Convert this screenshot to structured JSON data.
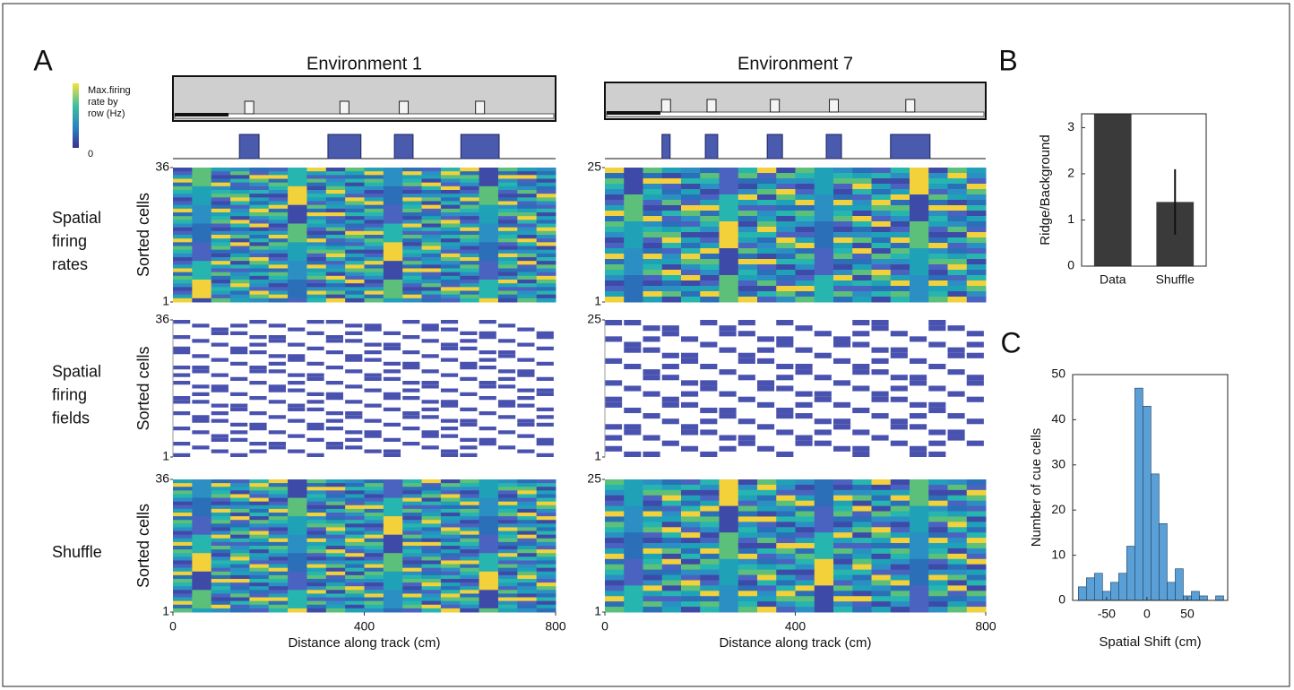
{
  "panel_a": {
    "label": "A",
    "colorbar_label": [
      "Max.firing",
      "rate by",
      "row (Hz)"
    ],
    "colorbar_min": "0",
    "ylabel": "Sorted cells",
    "xlabel": "Distance along track (cm)",
    "xlim": [
      0,
      800
    ],
    "xticks": [
      0,
      400,
      800
    ],
    "rows": [
      {
        "label": [
          "Spatial",
          "firing",
          "rates"
        ]
      },
      {
        "label": [
          "Spatial",
          "firing",
          "fields"
        ]
      },
      {
        "label": [
          "Shuffle"
        ]
      }
    ],
    "environments": [
      {
        "title": "Environment 1",
        "ylim": [
          1,
          36
        ],
        "yticks": [
          36,
          1
        ],
        "cues": [
          [
            139,
            180
          ],
          [
            324,
            393
          ],
          [
            463,
            502
          ],
          [
            602,
            682
          ]
        ]
      },
      {
        "title": "Environment 7",
        "ylim": [
          1,
          25
        ],
        "yticks": [
          25,
          1
        ],
        "cues": [
          [
            120,
            137
          ],
          [
            211,
            237
          ],
          [
            341,
            373
          ],
          [
            465,
            497
          ],
          [
            600,
            683
          ]
        ]
      }
    ]
  },
  "chart_data": [
    {
      "type": "bar",
      "label": "B",
      "ylabel": "Ridge/Background",
      "categories": [
        "Data",
        "Shuffle"
      ],
      "values": [
        3.3,
        1.39
      ],
      "errors": [
        null,
        0.71
      ],
      "color": "#3a3a3a",
      "ylim": [
        0,
        3.3
      ],
      "yticks": [
        0,
        1,
        2,
        3
      ]
    },
    {
      "type": "histogram",
      "label": "C",
      "xlabel": "Spatial Shift (cm)",
      "ylabel": "Number of cue cells",
      "bins": [
        -85,
        -75,
        -65,
        -55,
        -45,
        -35,
        -25,
        -15,
        -5,
        5,
        15,
        25,
        35,
        45,
        55,
        65,
        75,
        85,
        95
      ],
      "values": [
        3,
        5,
        6,
        2,
        4,
        6,
        12,
        47,
        43,
        28,
        17,
        4,
        7,
        1,
        2,
        1,
        0,
        1
      ],
      "color": "#5aa0d6",
      "xlim": [
        -92,
        100
      ],
      "xticks": [
        -50,
        0,
        50
      ],
      "ylim": [
        0,
        50
      ],
      "yticks": [
        0,
        10,
        20,
        30,
        40,
        50
      ]
    }
  ]
}
